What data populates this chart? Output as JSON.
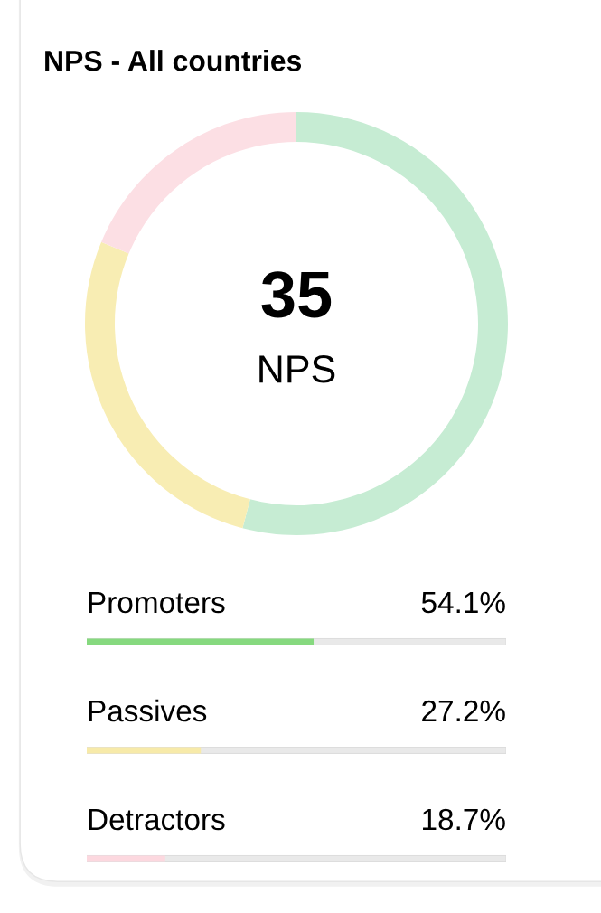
{
  "chart_data": [
    {
      "type": "donut",
      "title": "NPS - All countries",
      "categories": [
        null,
        null,
        null
      ],
      "values": [
        54.1,
        27.2,
        18.7
      ],
      "colors": [
        "#c6ecd3",
        "#f8edb3",
        "#fcdfe4"
      ],
      "annotations": [
        "35",
        "NPS"
      ]
    },
    {
      "type": "bar",
      "orientation": "horizontal",
      "categories": [
        "Promoters",
        "Passives",
        "Detractors"
      ],
      "values": [
        54.1,
        27.2,
        18.7
      ],
      "colors": [
        "#86d97f",
        "#f7eaa9",
        "#fcd8df"
      ],
      "value_labels": [
        "54.1%",
        "27.2%",
        "18.7%"
      ],
      "xlim": [
        0,
        100
      ],
      "tick_labels": false
    }
  ]
}
